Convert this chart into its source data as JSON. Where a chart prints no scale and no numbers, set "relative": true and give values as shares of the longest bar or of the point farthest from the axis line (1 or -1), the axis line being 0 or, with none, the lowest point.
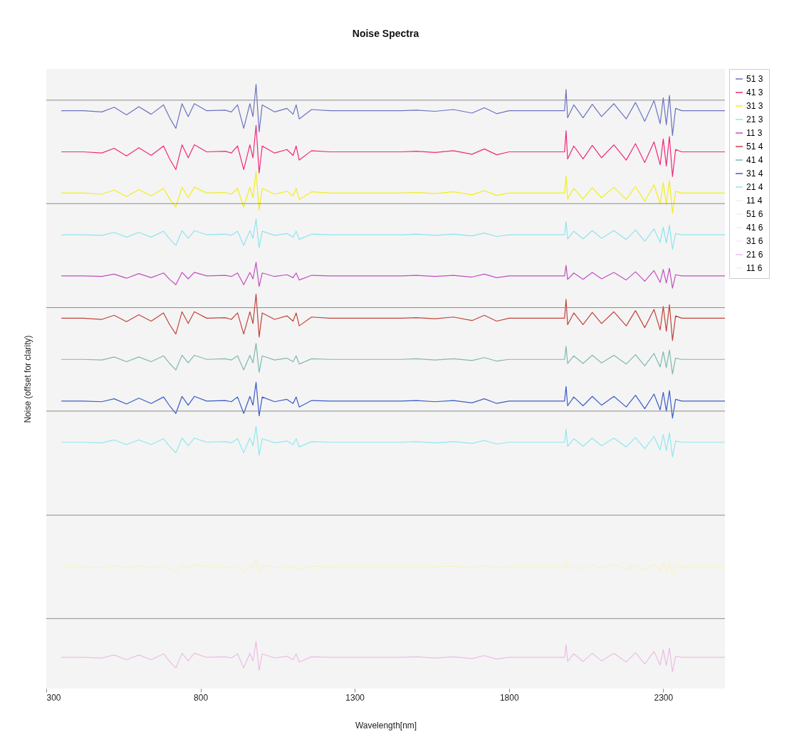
{
  "chart_data": {
    "type": "line",
    "title": "Noise Spectra",
    "xlabel": "Wavelength[nm]",
    "ylabel": "Noise (offset for clarity)",
    "relative": true,
    "legend": "right",
    "xlim": [
      300,
      2500
    ],
    "xticks": [
      300,
      800,
      1300,
      1800,
      2300
    ],
    "x": [
      350,
      420,
      480,
      520,
      560,
      600,
      640,
      680,
      700,
      720,
      740,
      760,
      780,
      820,
      880,
      900,
      920,
      940,
      960,
      970,
      980,
      990,
      1000,
      1040,
      1080,
      1100,
      1110,
      1120,
      1160,
      1220,
      1300,
      1450,
      1500,
      1560,
      1620,
      1680,
      1720,
      1760,
      1800,
      1980,
      1985,
      1990,
      2010,
      2040,
      2070,
      2100,
      2140,
      2180,
      2210,
      2240,
      2270,
      2290,
      2300,
      2310,
      2320,
      2330,
      2340,
      2360,
      2500
    ],
    "ref_lines": [
      {
        "axis": "y",
        "value": 0.973,
        "color": "#8c8c8c"
      },
      {
        "axis": "y",
        "value": 0.797,
        "color": "#8c8c8c"
      },
      {
        "axis": "y",
        "value": 0.62,
        "color": "#8c8c8c"
      },
      {
        "axis": "y",
        "value": 0.444,
        "color": "#8c8c8c"
      },
      {
        "axis": "y",
        "value": 0.267,
        "color": "#8c8c8c"
      },
      {
        "axis": "y",
        "value": 0.091,
        "color": "#8c8c8c"
      }
    ],
    "series": [
      {
        "name": "51 3",
        "color": "#6a72c0",
        "values": [
          0.955,
          0.955,
          0.953,
          0.961,
          0.948,
          0.962,
          0.949,
          0.965,
          0.943,
          0.925,
          0.967,
          0.945,
          0.967,
          0.955,
          0.956,
          0.953,
          0.965,
          0.925,
          0.967,
          0.945,
          1.0,
          0.919,
          0.965,
          0.953,
          0.959,
          0.949,
          0.965,
          0.941,
          0.957,
          0.955,
          0.955,
          0.955,
          0.956,
          0.954,
          0.957,
          0.951,
          0.96,
          0.95,
          0.955,
          0.955,
          0.991,
          0.943,
          0.965,
          0.943,
          0.966,
          0.945,
          0.967,
          0.941,
          0.969,
          0.937,
          0.972,
          0.933,
          0.977,
          0.931,
          0.981,
          0.913,
          0.959,
          0.955,
          0.955
        ]
      },
      {
        "name": "41 3",
        "color": "#f0287a",
        "values": [
          0.885,
          0.885,
          0.883,
          0.891,
          0.878,
          0.892,
          0.879,
          0.895,
          0.873,
          0.855,
          0.897,
          0.875,
          0.897,
          0.885,
          0.886,
          0.883,
          0.895,
          0.855,
          0.897,
          0.875,
          0.93,
          0.849,
          0.895,
          0.883,
          0.889,
          0.879,
          0.895,
          0.871,
          0.887,
          0.885,
          0.885,
          0.885,
          0.886,
          0.884,
          0.887,
          0.881,
          0.89,
          0.88,
          0.885,
          0.885,
          0.921,
          0.873,
          0.895,
          0.873,
          0.896,
          0.875,
          0.897,
          0.871,
          0.899,
          0.867,
          0.902,
          0.863,
          0.907,
          0.861,
          0.911,
          0.843,
          0.889,
          0.885,
          0.885
        ]
      },
      {
        "name": "31 3",
        "color": "#f2ee1e",
        "values": [
          0.815,
          0.815,
          0.813,
          0.82,
          0.809,
          0.821,
          0.81,
          0.823,
          0.805,
          0.791,
          0.825,
          0.807,
          0.825,
          0.815,
          0.816,
          0.813,
          0.823,
          0.791,
          0.825,
          0.807,
          0.851,
          0.786,
          0.823,
          0.813,
          0.818,
          0.81,
          0.823,
          0.804,
          0.817,
          0.815,
          0.815,
          0.815,
          0.816,
          0.814,
          0.817,
          0.812,
          0.819,
          0.811,
          0.815,
          0.815,
          0.844,
          0.805,
          0.823,
          0.805,
          0.824,
          0.807,
          0.825,
          0.804,
          0.826,
          0.801,
          0.829,
          0.797,
          0.833,
          0.796,
          0.836,
          0.781,
          0.818,
          0.815,
          0.815
        ]
      },
      {
        "name": "21 3",
        "color": "#8fe3ef",
        "values": [
          0.744,
          0.744,
          0.743,
          0.748,
          0.74,
          0.748,
          0.74,
          0.75,
          0.737,
          0.726,
          0.751,
          0.738,
          0.751,
          0.744,
          0.745,
          0.743,
          0.75,
          0.726,
          0.751,
          0.738,
          0.771,
          0.722,
          0.75,
          0.743,
          0.746,
          0.74,
          0.75,
          0.736,
          0.745,
          0.744,
          0.744,
          0.744,
          0.745,
          0.743,
          0.745,
          0.742,
          0.747,
          0.741,
          0.744,
          0.744,
          0.766,
          0.737,
          0.75,
          0.737,
          0.751,
          0.738,
          0.751,
          0.736,
          0.752,
          0.733,
          0.754,
          0.731,
          0.757,
          0.73,
          0.76,
          0.719,
          0.746,
          0.744,
          0.744
        ]
      },
      {
        "name": "11 3",
        "color": "#c050c0",
        "values": [
          0.674,
          0.674,
          0.673,
          0.677,
          0.67,
          0.678,
          0.671,
          0.679,
          0.668,
          0.659,
          0.68,
          0.669,
          0.68,
          0.674,
          0.675,
          0.673,
          0.679,
          0.659,
          0.68,
          0.669,
          0.697,
          0.656,
          0.679,
          0.673,
          0.676,
          0.671,
          0.679,
          0.667,
          0.675,
          0.674,
          0.674,
          0.674,
          0.675,
          0.673,
          0.675,
          0.672,
          0.677,
          0.671,
          0.674,
          0.674,
          0.692,
          0.668,
          0.679,
          0.668,
          0.68,
          0.669,
          0.68,
          0.667,
          0.681,
          0.665,
          0.683,
          0.663,
          0.685,
          0.662,
          0.687,
          0.653,
          0.676,
          0.674,
          0.674
        ]
      },
      {
        "name": "51 4",
        "color": "#c0443a",
        "values": [
          0.602,
          0.602,
          0.6,
          0.607,
          0.596,
          0.608,
          0.597,
          0.611,
          0.591,
          0.575,
          0.613,
          0.593,
          0.613,
          0.602,
          0.603,
          0.6,
          0.611,
          0.575,
          0.613,
          0.593,
          0.643,
          0.57,
          0.611,
          0.6,
          0.606,
          0.597,
          0.611,
          0.589,
          0.604,
          0.602,
          0.602,
          0.602,
          0.603,
          0.601,
          0.604,
          0.598,
          0.607,
          0.597,
          0.602,
          0.602,
          0.634,
          0.591,
          0.611,
          0.591,
          0.612,
          0.593,
          0.613,
          0.589,
          0.615,
          0.586,
          0.617,
          0.582,
          0.622,
          0.58,
          0.625,
          0.564,
          0.606,
          0.602,
          0.602
        ]
      },
      {
        "name": "41 4",
        "color": "#7fb8b0",
        "values": [
          0.532,
          0.532,
          0.531,
          0.536,
          0.528,
          0.536,
          0.528,
          0.538,
          0.525,
          0.514,
          0.539,
          0.526,
          0.539,
          0.532,
          0.533,
          0.531,
          0.538,
          0.514,
          0.539,
          0.526,
          0.559,
          0.51,
          0.538,
          0.531,
          0.534,
          0.528,
          0.538,
          0.524,
          0.533,
          0.532,
          0.532,
          0.532,
          0.533,
          0.531,
          0.533,
          0.53,
          0.535,
          0.529,
          0.532,
          0.532,
          0.554,
          0.525,
          0.538,
          0.525,
          0.539,
          0.526,
          0.539,
          0.524,
          0.54,
          0.521,
          0.542,
          0.519,
          0.545,
          0.518,
          0.548,
          0.507,
          0.534,
          0.532,
          0.532
        ]
      },
      {
        "name": "31 4",
        "color": "#3a5cc8",
        "values": [
          0.461,
          0.461,
          0.46,
          0.465,
          0.456,
          0.466,
          0.457,
          0.468,
          0.453,
          0.44,
          0.469,
          0.454,
          0.469,
          0.461,
          0.462,
          0.46,
          0.468,
          0.44,
          0.469,
          0.454,
          0.493,
          0.436,
          0.468,
          0.46,
          0.464,
          0.457,
          0.468,
          0.451,
          0.462,
          0.461,
          0.461,
          0.461,
          0.462,
          0.46,
          0.462,
          0.458,
          0.465,
          0.457,
          0.461,
          0.461,
          0.486,
          0.453,
          0.468,
          0.453,
          0.469,
          0.454,
          0.469,
          0.451,
          0.471,
          0.448,
          0.473,
          0.446,
          0.476,
          0.444,
          0.479,
          0.432,
          0.464,
          0.461,
          0.461
        ]
      },
      {
        "name": "21 4",
        "color": "#8fe8f0",
        "values": [
          0.391,
          0.391,
          0.39,
          0.395,
          0.387,
          0.395,
          0.387,
          0.397,
          0.384,
          0.373,
          0.398,
          0.385,
          0.398,
          0.391,
          0.392,
          0.39,
          0.397,
          0.373,
          0.398,
          0.385,
          0.418,
          0.369,
          0.397,
          0.39,
          0.393,
          0.387,
          0.397,
          0.383,
          0.392,
          0.391,
          0.391,
          0.391,
          0.392,
          0.39,
          0.392,
          0.389,
          0.394,
          0.388,
          0.391,
          0.391,
          0.413,
          0.384,
          0.397,
          0.384,
          0.398,
          0.385,
          0.398,
          0.383,
          0.399,
          0.38,
          0.401,
          0.378,
          0.404,
          0.377,
          0.407,
          0.366,
          0.393,
          0.391,
          0.391
        ]
      },
      {
        "name": "11 4",
        "color": "#f2f2f4",
        "values": [
          null,
          null,
          null,
          null,
          null,
          null,
          null,
          null,
          null,
          null,
          null,
          null,
          null,
          null,
          null,
          null,
          null,
          null,
          null,
          null,
          null,
          null,
          null,
          null,
          null,
          null,
          null,
          null,
          null,
          null,
          null,
          null,
          null,
          null,
          null,
          null,
          null,
          null,
          null,
          null,
          null,
          null,
          null,
          null,
          null,
          null,
          null,
          null,
          null,
          null,
          null,
          null,
          null,
          null,
          null,
          null,
          null,
          null,
          null
        ]
      },
      {
        "name": "51 6",
        "color": "#f4eeee",
        "values": [
          null,
          null,
          null,
          null,
          null,
          null,
          null,
          null,
          null,
          null,
          null,
          null,
          null,
          null,
          null,
          null,
          null,
          null,
          null,
          null,
          null,
          null,
          null,
          null,
          null,
          null,
          null,
          null,
          null,
          null,
          null,
          null,
          null,
          null,
          null,
          null,
          null,
          null,
          null,
          null,
          null,
          null,
          null,
          null,
          null,
          null,
          null,
          null,
          null,
          null,
          null,
          null,
          null,
          null,
          null,
          null,
          null,
          null,
          null
        ]
      },
      {
        "name": "41 6",
        "color": "#f6f3c4",
        "values": [
          0.179,
          0.179,
          0.178,
          0.181,
          0.177,
          0.181,
          0.177,
          0.182,
          0.175,
          0.17,
          0.183,
          0.176,
          0.183,
          0.179,
          0.179,
          0.178,
          0.182,
          0.17,
          0.183,
          0.176,
          0.193,
          0.168,
          0.182,
          0.178,
          0.18,
          0.177,
          0.182,
          0.175,
          0.18,
          0.179,
          0.179,
          0.179,
          0.179,
          0.179,
          0.18,
          0.178,
          0.181,
          0.177,
          0.179,
          0.179,
          0.19,
          0.175,
          0.182,
          0.175,
          0.182,
          0.176,
          0.183,
          0.175,
          0.183,
          0.174,
          0.184,
          0.172,
          0.186,
          0.172,
          0.187,
          0.166,
          0.18,
          0.179,
          0.179
        ]
      },
      {
        "name": "31 6",
        "color": "#eef4f4",
        "values": [
          null,
          null,
          null,
          null,
          null,
          null,
          null,
          null,
          null,
          null,
          null,
          null,
          null,
          null,
          null,
          null,
          null,
          null,
          null,
          null,
          null,
          null,
          null,
          null,
          null,
          null,
          null,
          null,
          null,
          null,
          null,
          null,
          null,
          null,
          null,
          null,
          null,
          null,
          null,
          null,
          null,
          null,
          null,
          null,
          null,
          null,
          null,
          null,
          null,
          null,
          null,
          null,
          null,
          null,
          null,
          null,
          null,
          null,
          null
        ]
      },
      {
        "name": "21 6",
        "color": "#ecbde4",
        "values": [
          0.025,
          0.025,
          0.024,
          0.029,
          0.021,
          0.029,
          0.021,
          0.031,
          0.018,
          0.007,
          0.032,
          0.019,
          0.032,
          0.025,
          0.026,
          0.024,
          0.031,
          0.007,
          0.032,
          0.019,
          0.052,
          0.003,
          0.031,
          0.024,
          0.027,
          0.021,
          0.031,
          0.017,
          0.026,
          0.025,
          0.025,
          0.025,
          0.026,
          0.024,
          0.026,
          0.023,
          0.028,
          0.022,
          0.025,
          0.025,
          0.047,
          0.018,
          0.031,
          0.018,
          0.032,
          0.019,
          0.032,
          0.017,
          0.033,
          0.014,
          0.035,
          0.012,
          0.038,
          0.011,
          0.041,
          0,
          0.027,
          0.025,
          0.025
        ]
      },
      {
        "name": "11 6",
        "color": "#f4eeee",
        "values": [
          null,
          null,
          null,
          null,
          null,
          null,
          null,
          null,
          null,
          null,
          null,
          null,
          null,
          null,
          null,
          null,
          null,
          null,
          null,
          null,
          null,
          null,
          null,
          null,
          null,
          null,
          null,
          null,
          null,
          null,
          null,
          null,
          null,
          null,
          null,
          null,
          null,
          null,
          null,
          null,
          null,
          null,
          null,
          null,
          null,
          null,
          null,
          null,
          null,
          null,
          null,
          null,
          null,
          null,
          null,
          null,
          null,
          null,
          null
        ]
      }
    ]
  }
}
